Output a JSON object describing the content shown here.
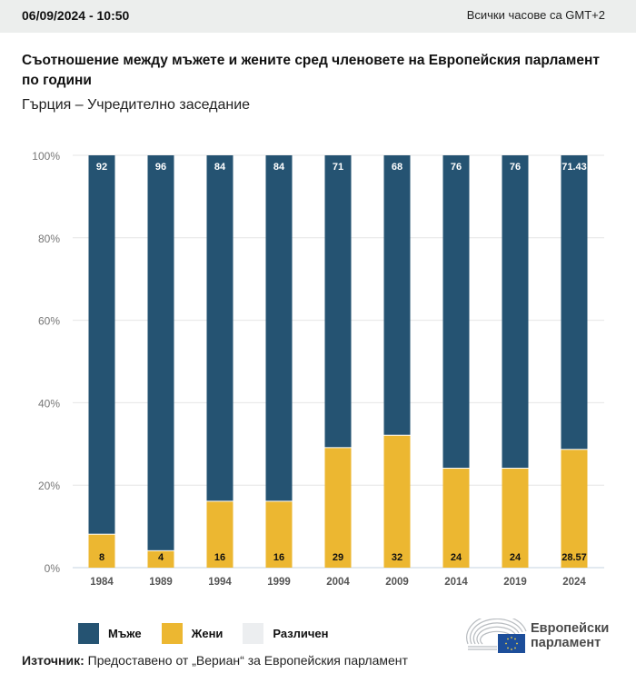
{
  "header": {
    "datetime": "06/09/2024 - 10:50",
    "timezone_note": "Всички часове са GMT+2"
  },
  "chart_data": {
    "type": "bar",
    "stacked": true,
    "title": "Съотношение между мъжете и жените сред членовете на Европейския парламент по години",
    "subtitle": "Гърция – Учредително заседание",
    "xlabel": "",
    "ylabel": "",
    "ylim": [
      0,
      100
    ],
    "yticks": [
      "0%",
      "20%",
      "40%",
      "60%",
      "80%",
      "100%"
    ],
    "ytick_values": [
      0,
      20,
      40,
      60,
      80,
      100
    ],
    "grid": true,
    "categories": [
      "1984",
      "1989",
      "1994",
      "1999",
      "2004",
      "2009",
      "2014",
      "2019",
      "2024"
    ],
    "series": [
      {
        "name": "Жени",
        "color": "#ecb731",
        "values": [
          8,
          4,
          16,
          16,
          29,
          32,
          24,
          24,
          28.57
        ],
        "labels": [
          "8",
          "4",
          "16",
          "16",
          "29",
          "32",
          "24",
          "24",
          "28.57"
        ]
      },
      {
        "name": "Мъже",
        "color": "#255372",
        "values": [
          92,
          96,
          84,
          84,
          71,
          68,
          76,
          76,
          71.43
        ],
        "labels": [
          "92",
          "96",
          "84",
          "84",
          "71",
          "68",
          "76",
          "76",
          "71.43"
        ]
      }
    ],
    "legend": [
      {
        "name": "Мъже",
        "color": "#255372"
      },
      {
        "name": "Жени",
        "color": "#ecb731"
      },
      {
        "name": "Различен",
        "color": "#eceef0"
      }
    ],
    "legend_position": "bottom-left"
  },
  "footer": {
    "source_label": "Източник:",
    "source_text": " Предоставено от „Вериан“ за Европейския парламент",
    "logo_line1": "Европейски",
    "logo_line2": "парламент"
  }
}
